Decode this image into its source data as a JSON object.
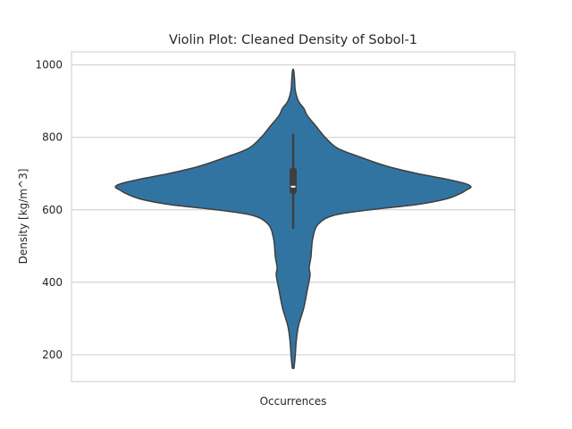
{
  "chart_data": {
    "type": "violin",
    "title": "Violin Plot: Cleaned Density of Sobol-1",
    "xlabel": "Occurrences",
    "ylabel": "Density [kg/m^3]",
    "ylim": [
      126,
      1036
    ],
    "yticks": [
      200,
      400,
      600,
      800,
      1000
    ],
    "grid": true,
    "color": "#3274a1",
    "edge_color": "#3f3f3f",
    "box": {
      "whisker_low": 548,
      "q1": 643,
      "median": 664,
      "q3": 717,
      "whisker_high": 810
    },
    "density_profile": {
      "y": [
        165,
        200,
        240,
        280,
        330,
        380,
        420,
        440,
        470,
        520,
        560,
        585,
        600,
        615,
        630,
        645,
        655,
        663,
        672,
        685,
        700,
        720,
        745,
        770,
        800,
        830,
        860,
        880,
        900,
        930,
        960,
        985
      ],
      "half_width": [
        0.005,
        0.012,
        0.018,
        0.03,
        0.06,
        0.08,
        0.095,
        0.09,
        0.1,
        0.11,
        0.14,
        0.23,
        0.43,
        0.7,
        0.86,
        0.94,
        0.975,
        1.0,
        0.97,
        0.86,
        0.7,
        0.53,
        0.38,
        0.25,
        0.18,
        0.13,
        0.08,
        0.06,
        0.03,
        0.012,
        0.008,
        0.003
      ]
    }
  }
}
